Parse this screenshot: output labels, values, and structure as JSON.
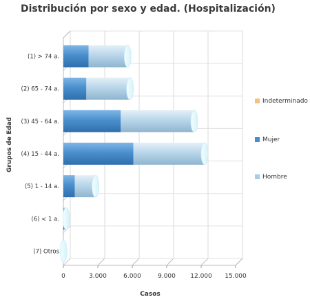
{
  "chart_data": {
    "type": "bar",
    "orientation": "horizontal",
    "stacked": true,
    "style": "3d-cylinder",
    "title": "Distribución por sexo y edad. (Hospitalización)",
    "xlabel": "Casos",
    "ylabel": "Grupos de Edad",
    "categories": [
      "(1) > 74 a.",
      "(2) 65 - 74 a.",
      "(3) 45 - 64 a.",
      "(4) 15 - 44 a.",
      "(5) 1 - 14 a.",
      "(6) < 1 a.",
      "(7) Otros"
    ],
    "series": [
      {
        "name": "Mujer",
        "color": "#4a8fcc",
        "values": [
          2200,
          2000,
          5000,
          6100,
          1000,
          100,
          0
        ]
      },
      {
        "name": "Hombre",
        "color": "#a9cde8",
        "values": [
          3400,
          3800,
          6400,
          6200,
          1800,
          150,
          20
        ]
      },
      {
        "name": "Indeterminado",
        "color": "#f2c281",
        "values": [
          0,
          0,
          0,
          0,
          0,
          0,
          0
        ]
      }
    ],
    "legend_order": [
      "Indeterminado",
      "Mujer",
      "Hombre"
    ],
    "xticks": [
      "0",
      "3.000",
      "6.000",
      "9.000",
      "12.000",
      "15.000"
    ],
    "xlim": [
      0,
      15000
    ],
    "grid": true,
    "legend_position": "right"
  }
}
